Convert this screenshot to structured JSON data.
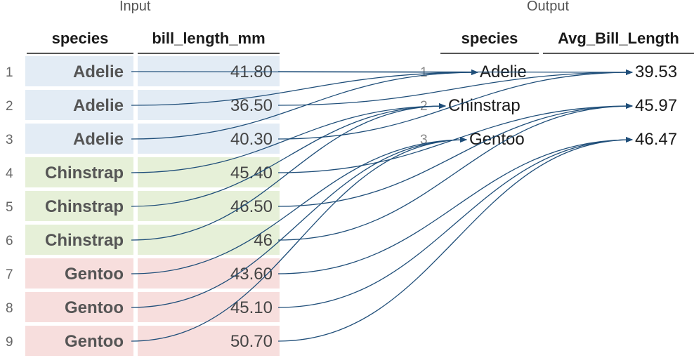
{
  "titles": {
    "input": "Input",
    "output": "Output"
  },
  "input": {
    "headers": {
      "species": "species",
      "value": "bill_length_mm"
    },
    "rows": [
      {
        "num": "1",
        "species": "Adelie",
        "value": "41.80",
        "group": "adelie"
      },
      {
        "num": "2",
        "species": "Adelie",
        "value": "36.50",
        "group": "adelie"
      },
      {
        "num": "3",
        "species": "Adelie",
        "value": "40.30",
        "group": "adelie"
      },
      {
        "num": "4",
        "species": "Chinstrap",
        "value": "45.40",
        "group": "chinstrap"
      },
      {
        "num": "5",
        "species": "Chinstrap",
        "value": "46.50",
        "group": "chinstrap"
      },
      {
        "num": "6",
        "species": "Chinstrap",
        "value": "46",
        "group": "chinstrap"
      },
      {
        "num": "7",
        "species": "Gentoo",
        "value": "43.60",
        "group": "gentoo"
      },
      {
        "num": "8",
        "species": "Gentoo",
        "value": "45.10",
        "group": "gentoo"
      },
      {
        "num": "9",
        "species": "Gentoo",
        "value": "50.70",
        "group": "gentoo"
      }
    ]
  },
  "output": {
    "headers": {
      "species": "species",
      "value": "Avg_Bill_Length"
    },
    "rows": [
      {
        "num": "1",
        "species": "Adelie",
        "value": "39.53"
      },
      {
        "num": "2",
        "species": "Chinstrap",
        "value": "45.97"
      },
      {
        "num": "3",
        "species": "Gentoo",
        "value": "46.47"
      }
    ]
  },
  "colors": {
    "adelie": "#e3ecf5",
    "chinstrap": "#e6f0d8",
    "gentoo": "#f7dedd",
    "arrow": "#1f4e79"
  }
}
